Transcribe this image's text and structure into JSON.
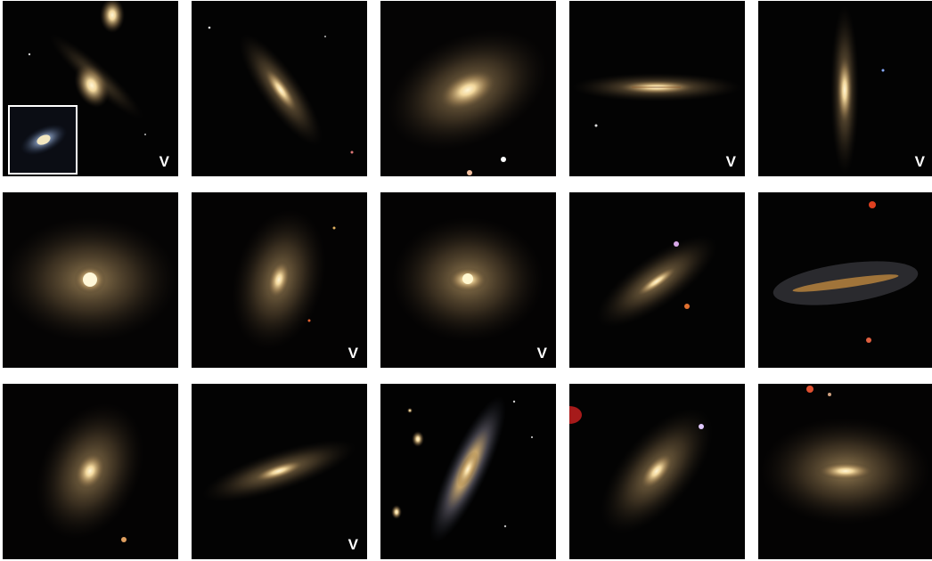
{
  "grid": {
    "rows": 3,
    "columns": 5,
    "marker_text": "V",
    "tiles": [
      {
        "id": "r1c1",
        "marked": true,
        "inset": true
      },
      {
        "id": "r1c2",
        "marked": false
      },
      {
        "id": "r1c3",
        "marked": false
      },
      {
        "id": "r1c4",
        "marked": true
      },
      {
        "id": "r1c5",
        "marked": true
      },
      {
        "id": "r2c1",
        "marked": false
      },
      {
        "id": "r2c2",
        "marked": true
      },
      {
        "id": "r2c3",
        "marked": true
      },
      {
        "id": "r2c4",
        "marked": false
      },
      {
        "id": "r2c5",
        "marked": false
      },
      {
        "id": "r3c1",
        "marked": false
      },
      {
        "id": "r3c2",
        "marked": true
      },
      {
        "id": "r3c3",
        "marked": false
      },
      {
        "id": "r3c4",
        "marked": false
      },
      {
        "id": "r3c5",
        "marked": false
      }
    ]
  },
  "colors": {
    "sky": "#020202",
    "galaxy_core": "#fff2c4",
    "galaxy_halo": "#c8a472",
    "marker": "#ffffff"
  }
}
